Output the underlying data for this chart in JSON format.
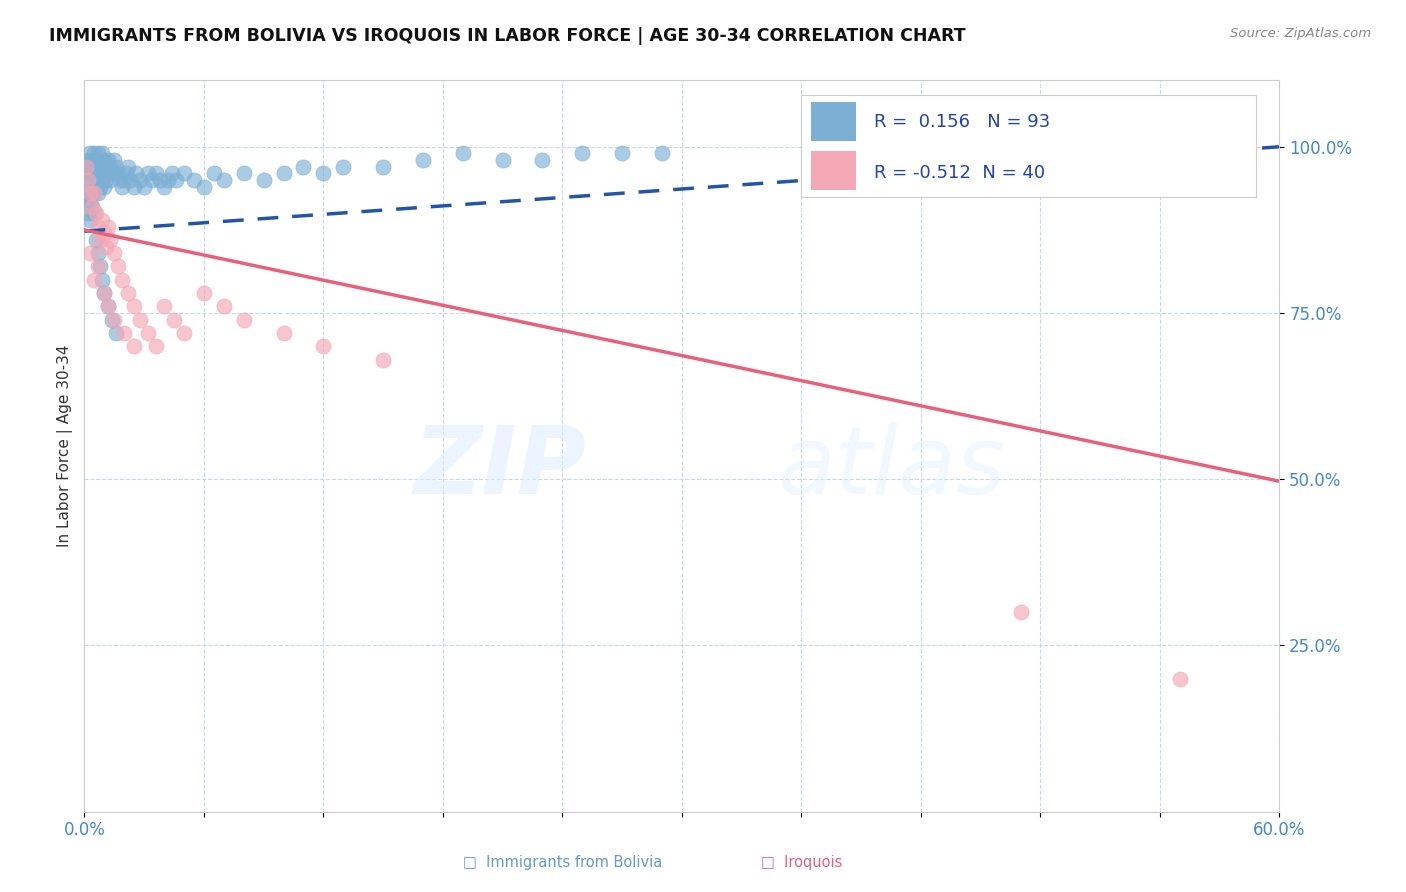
{
  "title": "IMMIGRANTS FROM BOLIVIA VS IROQUOIS IN LABOR FORCE | AGE 30-34 CORRELATION CHART",
  "source": "Source: ZipAtlas.com",
  "ylabel": "In Labor Force | Age 30-34",
  "xlim": [
    0.0,
    0.6
  ],
  "ylim": [
    0.0,
    1.1
  ],
  "yticks": [
    0.25,
    0.5,
    0.75,
    1.0
  ],
  "yticklabels": [
    "25.0%",
    "50.0%",
    "75.0%",
    "100.0%"
  ],
  "xtick_positions": [
    0.0,
    0.06,
    0.12,
    0.18,
    0.24,
    0.3,
    0.36,
    0.42,
    0.48,
    0.54,
    0.6
  ],
  "xticklabels_show": [
    "0.0%",
    "60.0%"
  ],
  "legend_R_bolivia": "0.156",
  "legend_N_bolivia": "93",
  "legend_R_iroquois": "-0.512",
  "legend_N_iroquois": "40",
  "bolivia_color": "#7BAFD4",
  "iroquois_color": "#F4A7B5",
  "bolivia_trend_color": "#2255AA",
  "iroquois_trend_color": "#E8607A",
  "bolivia_trend_x0": 0.0,
  "bolivia_trend_y0": 0.873,
  "bolivia_trend_x1": 0.6,
  "bolivia_trend_y1": 1.0,
  "iroquois_trend_x0": 0.0,
  "iroquois_trend_y0": 0.875,
  "iroquois_trend_x1": 0.6,
  "iroquois_trend_y1": 0.497,
  "bolivia_x": [
    0.001,
    0.001,
    0.001,
    0.002,
    0.002,
    0.002,
    0.002,
    0.003,
    0.003,
    0.003,
    0.003,
    0.003,
    0.004,
    0.004,
    0.004,
    0.004,
    0.005,
    0.005,
    0.005,
    0.005,
    0.005,
    0.006,
    0.006,
    0.006,
    0.007,
    0.007,
    0.007,
    0.007,
    0.008,
    0.008,
    0.008,
    0.009,
    0.009,
    0.009,
    0.01,
    0.01,
    0.01,
    0.011,
    0.011,
    0.012,
    0.012,
    0.013,
    0.013,
    0.014,
    0.015,
    0.015,
    0.016,
    0.017,
    0.018,
    0.019,
    0.02,
    0.021,
    0.022,
    0.023,
    0.025,
    0.026,
    0.028,
    0.03,
    0.032,
    0.034,
    0.036,
    0.038,
    0.04,
    0.042,
    0.044,
    0.046,
    0.05,
    0.055,
    0.06,
    0.065,
    0.07,
    0.08,
    0.09,
    0.1,
    0.11,
    0.12,
    0.13,
    0.15,
    0.17,
    0.19,
    0.21,
    0.23,
    0.25,
    0.27,
    0.29,
    0.006,
    0.007,
    0.008,
    0.009,
    0.01,
    0.012,
    0.014,
    0.016
  ],
  "bolivia_y": [
    0.97,
    0.95,
    0.92,
    0.98,
    0.96,
    0.93,
    0.9,
    0.99,
    0.97,
    0.95,
    0.92,
    0.89,
    0.98,
    0.96,
    0.93,
    0.91,
    0.99,
    0.97,
    0.95,
    0.93,
    0.9,
    0.98,
    0.96,
    0.94,
    0.99,
    0.97,
    0.95,
    0.93,
    0.98,
    0.96,
    0.94,
    0.99,
    0.97,
    0.95,
    0.98,
    0.96,
    0.94,
    0.97,
    0.95,
    0.98,
    0.96,
    0.97,
    0.95,
    0.96,
    0.98,
    0.96,
    0.97,
    0.96,
    0.95,
    0.94,
    0.95,
    0.96,
    0.97,
    0.95,
    0.94,
    0.96,
    0.95,
    0.94,
    0.96,
    0.95,
    0.96,
    0.95,
    0.94,
    0.95,
    0.96,
    0.95,
    0.96,
    0.95,
    0.94,
    0.96,
    0.95,
    0.96,
    0.95,
    0.96,
    0.97,
    0.96,
    0.97,
    0.97,
    0.98,
    0.99,
    0.98,
    0.98,
    0.99,
    0.99,
    0.99,
    0.86,
    0.84,
    0.82,
    0.8,
    0.78,
    0.76,
    0.74,
    0.72
  ],
  "iroquois_x": [
    0.001,
    0.002,
    0.003,
    0.004,
    0.005,
    0.006,
    0.007,
    0.008,
    0.009,
    0.01,
    0.011,
    0.012,
    0.013,
    0.015,
    0.017,
    0.019,
    0.022,
    0.025,
    0.028,
    0.032,
    0.036,
    0.04,
    0.045,
    0.05,
    0.06,
    0.07,
    0.08,
    0.1,
    0.12,
    0.15,
    0.003,
    0.005,
    0.007,
    0.01,
    0.012,
    0.015,
    0.02,
    0.025,
    0.47,
    0.55
  ],
  "iroquois_y": [
    0.97,
    0.95,
    0.93,
    0.91,
    0.93,
    0.9,
    0.88,
    0.86,
    0.89,
    0.87,
    0.85,
    0.88,
    0.86,
    0.84,
    0.82,
    0.8,
    0.78,
    0.76,
    0.74,
    0.72,
    0.7,
    0.76,
    0.74,
    0.72,
    0.78,
    0.76,
    0.74,
    0.72,
    0.7,
    0.68,
    0.84,
    0.8,
    0.82,
    0.78,
    0.76,
    0.74,
    0.72,
    0.7,
    0.3,
    0.2
  ]
}
